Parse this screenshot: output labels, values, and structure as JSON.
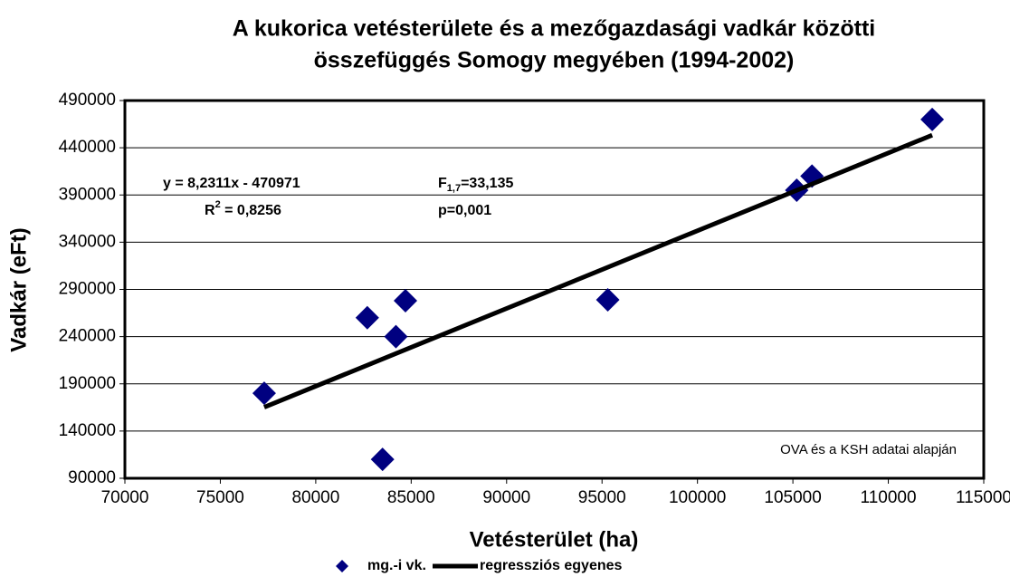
{
  "chart_data": {
    "type": "scatter",
    "title": [
      "A kukorica vetésterülete és a mezőgazdasági vadkár közötti",
      "összefüggés Somogy megyében (1994-2002)"
    ],
    "x_label": "Vetésterület (ha)",
    "y_label": "Vadkár (eFt)",
    "xlim": [
      70000,
      115000
    ],
    "xticks": [
      70000,
      75000,
      80000,
      85000,
      90000,
      95000,
      100000,
      105000,
      110000,
      115000
    ],
    "ylim": [
      90000,
      490000
    ],
    "yticks": [
      90000,
      140000,
      190000,
      240000,
      290000,
      340000,
      390000,
      440000,
      490000
    ],
    "grid": true,
    "series": [
      {
        "name": "mg.-i vk.",
        "color": "#000080",
        "x": [
          77300,
          82700,
          84200,
          84700,
          83500,
          95300,
          105200,
          106000,
          112300
        ],
        "values": [
          180000,
          260000,
          240000,
          278000,
          110000,
          279000,
          395000,
          410000,
          470000
        ]
      },
      {
        "name": "regressziós egyenes",
        "color": "#000000",
        "x": [
          77300,
          112300
        ],
        "values": [
          165293,
          453382
        ],
        "line": true
      }
    ],
    "annotations": {
      "equation": "y = 8,2311x - 470971",
      "r2": {
        "text": "R",
        "sup": "2",
        "rest": " = 0,8256"
      },
      "f": {
        "text": "F",
        "sub": "1,7",
        "rest": "=33,135"
      },
      "p": "p=0,001",
      "source": "OVA és a KSH adatai alapján"
    },
    "legend": "bottom"
  }
}
